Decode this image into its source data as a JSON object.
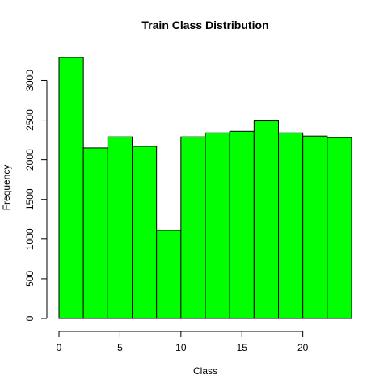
{
  "chart_data": {
    "type": "bar",
    "title": "Train Class Distribution",
    "xlabel": "Class",
    "ylabel": "Frequency",
    "bin_edges": [
      0,
      2,
      4,
      6,
      8,
      10,
      12,
      14,
      16,
      18,
      20,
      22,
      24
    ],
    "values": [
      3290,
      2150,
      2290,
      2170,
      1110,
      2290,
      2340,
      2360,
      2490,
      2340,
      2300,
      2280
    ],
    "xlim": [
      0,
      24
    ],
    "ylim": [
      0,
      3290
    ],
    "x_ticks": [
      0,
      5,
      10,
      15,
      20
    ],
    "y_ticks": [
      0,
      500,
      1000,
      1500,
      2000,
      2500,
      3000
    ],
    "x_tick_labels": [
      "0",
      "5",
      "10",
      "15",
      "20"
    ],
    "y_tick_labels": [
      "0",
      "500",
      "1000",
      "1500",
      "2000",
      "2500",
      "3000"
    ],
    "colors": {
      "bar_fill": "#00ff00",
      "bar_stroke": "#000000",
      "axis": "#000000",
      "background": "#ffffff"
    },
    "grid": false,
    "legend": "none"
  }
}
